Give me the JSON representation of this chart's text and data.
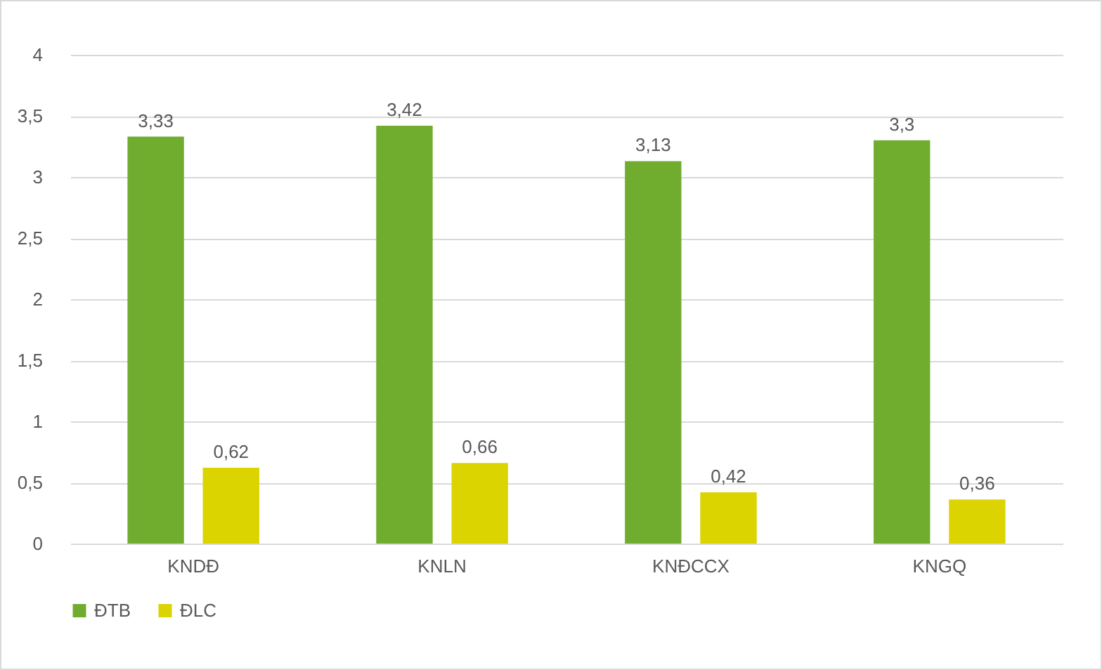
{
  "chart_data": {
    "type": "bar",
    "categories": [
      "KNDĐ",
      "KNLN",
      "KNĐCCX",
      "KNGQ"
    ],
    "series": [
      {
        "name": "ĐTB",
        "color": "#70ad2f",
        "values": [
          3.33,
          3.42,
          3.13,
          3.3
        ],
        "value_labels": [
          "3,33",
          "3,42",
          "3,13",
          "3,3"
        ]
      },
      {
        "name": "ĐLC",
        "color": "#dcd400",
        "values": [
          0.62,
          0.66,
          0.42,
          0.36
        ],
        "value_labels": [
          "0,62",
          "0,66",
          "0,42",
          "0,36"
        ]
      }
    ],
    "ylim": [
      0,
      4
    ],
    "yticks": [
      0,
      {
        "value": 0.5,
        "label": "0,5"
      },
      1,
      {
        "value": 1.5,
        "label": "1,5"
      },
      2,
      {
        "value": 2.5,
        "label": "2,5"
      },
      3,
      {
        "value": 3.5,
        "label": "3,5"
      },
      4
    ],
    "grid": "y",
    "legend": "bottom"
  }
}
